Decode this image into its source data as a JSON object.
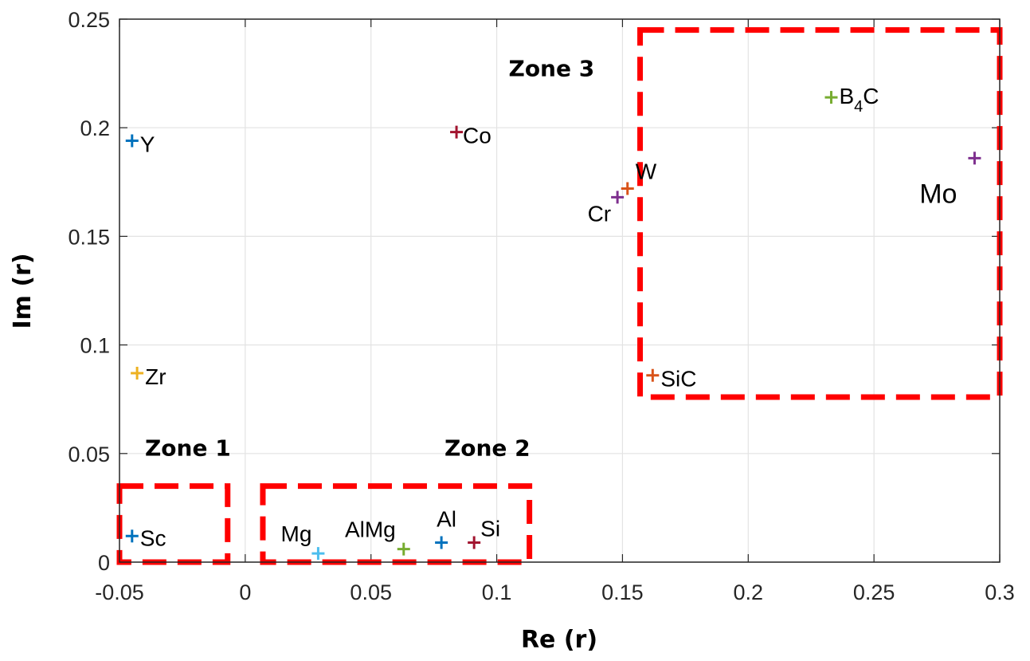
{
  "chart_data": {
    "type": "scatter",
    "xlabel": "Re (r)",
    "ylabel": "Im (r)",
    "xlim": [
      -0.05,
      0.3
    ],
    "ylim": [
      0,
      0.25
    ],
    "x_ticks": [
      "-0.05",
      "0",
      "0.05",
      "0.1",
      "0.15",
      "0.2",
      "0.25",
      "0.3"
    ],
    "y_ticks": [
      "0",
      "0.05",
      "0.1",
      "0.15",
      "0.2",
      "0.25"
    ],
    "grid": true,
    "points": [
      {
        "label": "Y",
        "x": -0.045,
        "y": 0.194,
        "color": "#0072BD"
      },
      {
        "label": "Co",
        "x": 0.084,
        "y": 0.198,
        "color": "#A2142F"
      },
      {
        "label": "W",
        "x": 0.152,
        "y": 0.172,
        "color": "#D95319"
      },
      {
        "label": "Cr",
        "x": 0.148,
        "y": 0.168,
        "color": "#7E2F8E"
      },
      {
        "label": "B4C",
        "x": 0.233,
        "y": 0.214,
        "color": "#77AC30"
      },
      {
        "label": "Mo",
        "x": 0.29,
        "y": 0.186,
        "color": "#7E2F8E"
      },
      {
        "label": "Zr",
        "x": -0.043,
        "y": 0.087,
        "color": "#EDB120"
      },
      {
        "label": "SiC",
        "x": 0.162,
        "y": 0.086,
        "color": "#D95319"
      },
      {
        "label": "Sc",
        "x": -0.045,
        "y": 0.012,
        "color": "#0072BD"
      },
      {
        "label": "Mg",
        "x": 0.029,
        "y": 0.004,
        "color": "#4DBEEE"
      },
      {
        "label": "AlMg",
        "x": 0.063,
        "y": 0.006,
        "color": "#77AC30"
      },
      {
        "label": "Al",
        "x": 0.078,
        "y": 0.009,
        "color": "#0072BD"
      },
      {
        "label": "Si",
        "x": 0.091,
        "y": 0.009,
        "color": "#A2142F"
      }
    ],
    "zones": [
      {
        "label": "Zone 1",
        "x0": -0.05,
        "x1": -0.007,
        "y0": 0,
        "y1": 0.035
      },
      {
        "label": "Zone 2",
        "x0": 0.007,
        "x1": 0.113,
        "y0": 0,
        "y1": 0.035
      },
      {
        "label": "Zone 3",
        "x0": 0.157,
        "x1": 0.3,
        "y0": 0.076,
        "y1": 0.245
      }
    ],
    "zone_color": "#FF0000"
  }
}
